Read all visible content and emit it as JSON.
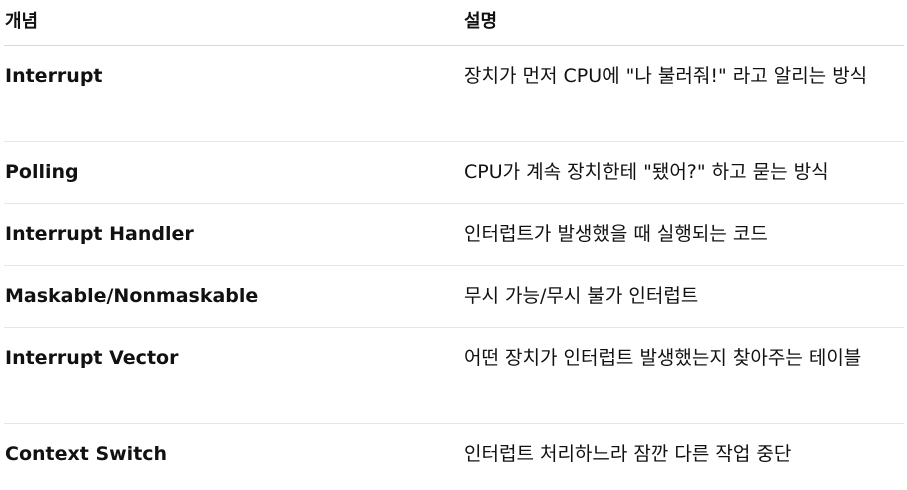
{
  "table": {
    "headers": {
      "concept": "개념",
      "description": "설명"
    },
    "rows": [
      {
        "concept": "Interrupt",
        "description": "장치가 먼저 CPU에 \"나 불러줘!\" 라고 알리는 방식"
      },
      {
        "concept": "Polling",
        "description": "CPU가 계속 장치한테 \"됐어?\" 하고 묻는 방식"
      },
      {
        "concept": "Interrupt Handler",
        "description": "인터럽트가 발생했을 때 실행되는 코드"
      },
      {
        "concept": "Maskable/Nonmaskable",
        "description": "무시 가능/무시 불가 인터럽트"
      },
      {
        "concept": "Interrupt Vector",
        "description": "어떤 장치가 인터럽트 발생했는지 찾아주는 테이블"
      },
      {
        "concept": "Context Switch",
        "description": "인터럽트 처리하느라 잠깐 다른 작업 중단"
      }
    ]
  }
}
